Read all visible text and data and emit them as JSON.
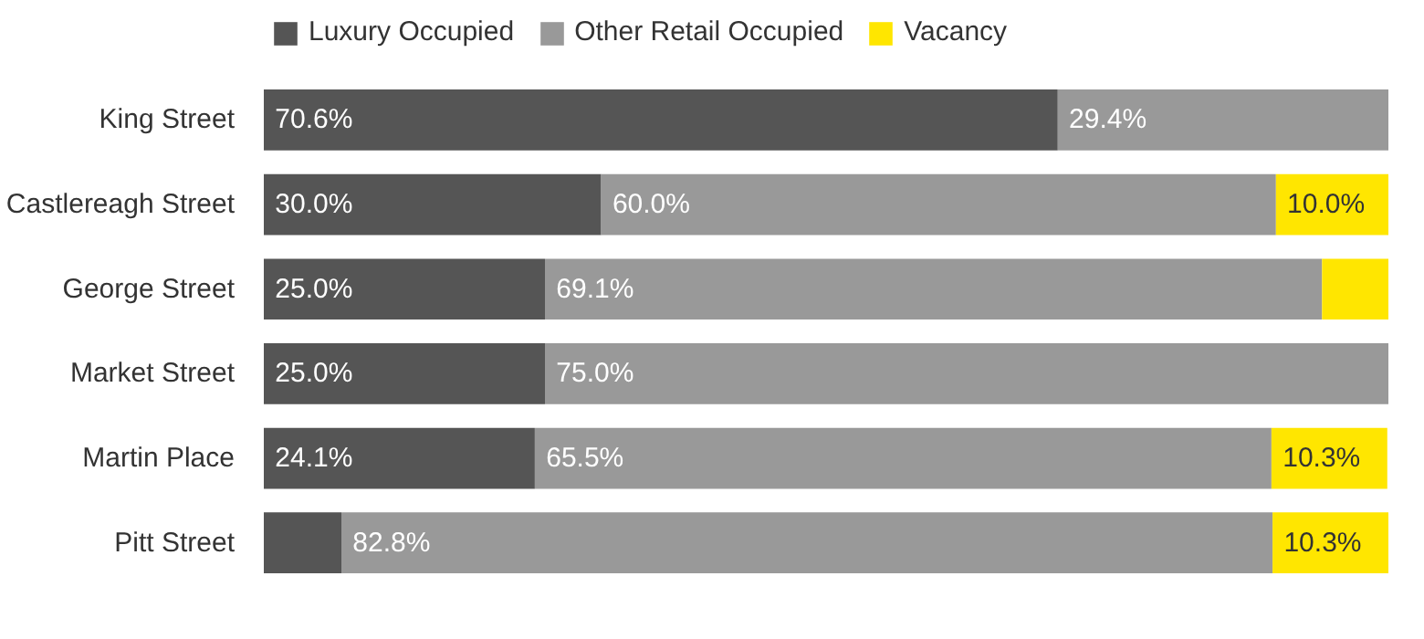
{
  "chart_data": {
    "type": "bar",
    "orientation": "horizontal",
    "stacked": true,
    "legend": "top left",
    "grid": false,
    "tick_labels": "y",
    "xlim": [
      0,
      100
    ],
    "categories": [
      "King Street",
      "Castlereagh Street",
      "George Street",
      "Market Street",
      "Martin Place",
      "Pitt Street"
    ],
    "series": [
      {
        "name": "Luxury Occupied",
        "color": "#555555",
        "values": [
          70.6,
          30.0,
          25.0,
          25.0,
          24.1,
          6.9
        ],
        "value_labels": [
          "70.6%",
          "30.0%",
          "25.0%",
          "25.0%",
          "24.1%",
          null
        ]
      },
      {
        "name": "Other Retail Occupied",
        "color": "#999999",
        "values": [
          29.4,
          60.0,
          69.1,
          75.0,
          65.5,
          82.8
        ],
        "value_labels": [
          "29.4%",
          "60.0%",
          "69.1%",
          "75.0%",
          "65.5%",
          "82.8%"
        ]
      },
      {
        "name": "Vacancy",
        "color": "#ffe600",
        "values": [
          0,
          10.0,
          5.9,
          0,
          10.3,
          10.3
        ],
        "value_labels": [
          null,
          "10.0%",
          null,
          null,
          "10.3%",
          "10.3%"
        ]
      }
    ]
  }
}
